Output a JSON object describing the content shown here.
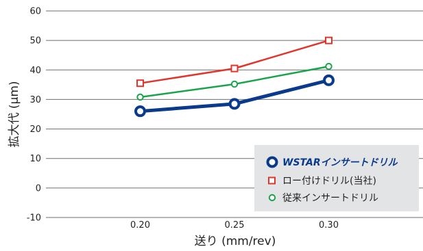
{
  "chart_data": {
    "type": "line",
    "title": "",
    "xlabel": "送り (mm/rev)",
    "ylabel": "拡大代 (μm)",
    "x": [
      0.2,
      0.25,
      0.3
    ],
    "x_tick_labels": [
      "0.20",
      "0.25",
      "0.30"
    ],
    "xlim": [
      0.15,
      0.35
    ],
    "ylim": [
      -10,
      60
    ],
    "y_ticks": [
      -10,
      0,
      10,
      20,
      30,
      40,
      50,
      60
    ],
    "grid": "horizontal",
    "legend_position": "bottom-right",
    "series": [
      {
        "name": "ロー付けドリル(当社)",
        "values": [
          35.5,
          40.5,
          50
        ],
        "color": "#e3342b",
        "marker": "square"
      },
      {
        "name": "従来インサートドリル",
        "values": [
          30.8,
          35.2,
          41.2
        ],
        "color": "#18a54a",
        "marker": "circle"
      },
      {
        "name": "WSTARインサートドリル",
        "values": [
          26,
          28.5,
          36.5
        ],
        "color": "#0a3a8c",
        "marker": "circle-bold"
      }
    ],
    "legend_order": [
      2,
      0,
      1
    ]
  }
}
